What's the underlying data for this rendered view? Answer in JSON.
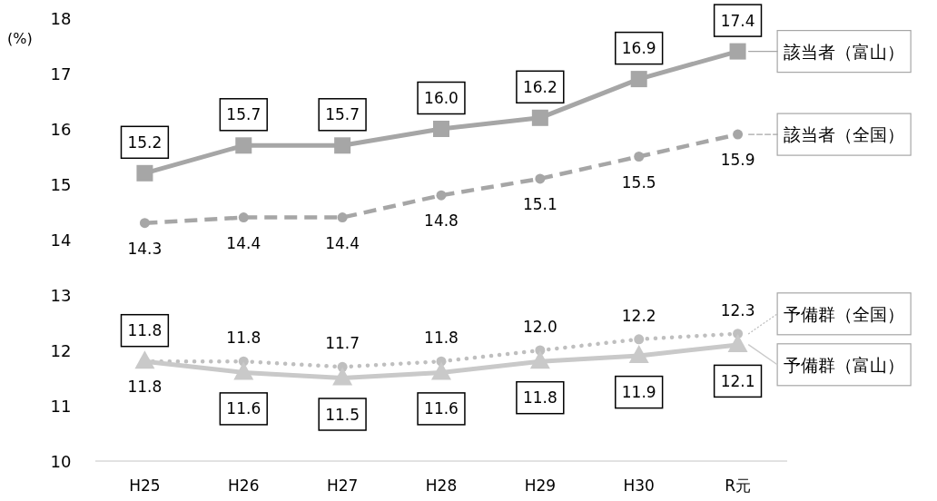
{
  "chart_data": {
    "type": "line",
    "ylabel": "(%)",
    "categories": [
      "H25",
      "H26",
      "H27",
      "H28",
      "H29",
      "H30",
      "R元"
    ],
    "ylim": [
      10,
      18
    ],
    "yticks": [
      10,
      11,
      12,
      13,
      14,
      15,
      16,
      17,
      18
    ],
    "legend": "right",
    "series": [
      {
        "name": "該当者（富山）",
        "color": "#a6a6a6",
        "marker": "square",
        "line_style": "solid",
        "values": [
          15.2,
          15.7,
          15.7,
          16.0,
          16.2,
          16.9,
          17.4
        ],
        "value_labels": [
          "15.2",
          "15.7",
          "15.7",
          "16.0",
          "16.2",
          "16.9",
          "17.4"
        ]
      },
      {
        "name": "該当者（全国）",
        "color": "#a6a6a6",
        "marker": "circle",
        "line_style": "dashed",
        "values": [
          14.3,
          14.4,
          14.4,
          14.8,
          15.1,
          15.5,
          15.9
        ],
        "value_labels": [
          "14.3",
          "14.4",
          "14.4",
          "14.8",
          "15.1",
          "15.5",
          "15.9"
        ]
      },
      {
        "name": "予備群（全国）",
        "color": "#bfbfbf",
        "marker": "circle",
        "line_style": "dotted",
        "values": [
          11.8,
          11.8,
          11.7,
          11.8,
          12.0,
          12.2,
          12.3
        ],
        "value_labels": [
          "11.8",
          "11.8",
          "11.7",
          "11.8",
          "12.0",
          "12.2",
          "12.3"
        ]
      },
      {
        "name": "予備群（富山）",
        "color": "#c9c9c9",
        "marker": "triangle",
        "line_style": "solid",
        "values": [
          11.8,
          11.6,
          11.5,
          11.6,
          11.8,
          11.9,
          12.1
        ],
        "value_labels": [
          "11.8",
          "11.6",
          "11.5",
          "11.6",
          "11.8",
          "11.9",
          "12.1"
        ]
      }
    ]
  }
}
